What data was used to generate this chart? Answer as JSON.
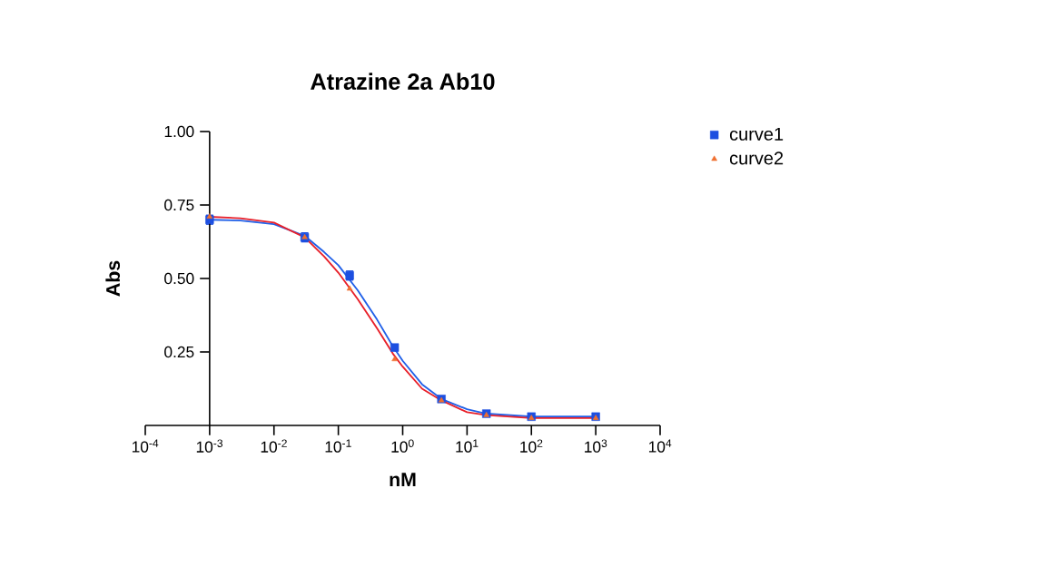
{
  "chart_data": {
    "type": "scatter",
    "title": "Atrazine 2a Ab10",
    "xlabel": "nM",
    "ylabel": "Abs",
    "log": "x",
    "legend": "top right",
    "xlim": [
      0.0001,
      10000
    ],
    "ylim": [
      0,
      1
    ],
    "xticks": [
      {
        "value": 0.0001,
        "label": "10$^{-4}$"
      },
      {
        "value": 0.001,
        "label": "10$^{-3}$"
      },
      {
        "value": 0.01,
        "label": "10$^{-2}$"
      },
      {
        "value": 0.1,
        "label": "10$^{-1}$"
      },
      {
        "value": 1,
        "label": "10$^{0}$"
      },
      {
        "value": 10,
        "label": "10$^{1}$"
      },
      {
        "value": 100,
        "label": "10$^{2}$"
      },
      {
        "value": 1000,
        "label": "10$^{3}$"
      },
      {
        "value": 10000,
        "label": "10$^{4}$"
      }
    ],
    "yticks": [
      0.25,
      {
        "value": 0.5,
        "label": "0.50"
      },
      0.75,
      {
        "value": 1,
        "label": "1.00"
      }
    ],
    "series": [
      {
        "name": "curve1",
        "marker": "square",
        "color": "#1d4fe0",
        "x": [
          0.001,
          0.03,
          0.15,
          0.75,
          4,
          20,
          100,
          1000
        ],
        "values": [
          0.7,
          0.64,
          0.51,
          0.265,
          0.09,
          0.04,
          0.03,
          0.03
        ],
        "errors": [
          0.015,
          0.015,
          0.015,
          0.01,
          null,
          null,
          null,
          null
        ]
      },
      {
        "name": "curve2",
        "marker": "triangle",
        "color": "#f07030",
        "x": [
          0.001,
          0.03,
          0.15,
          0.75,
          4,
          20,
          100,
          1000
        ],
        "values": [
          0.71,
          0.64,
          0.465,
          0.225,
          0.085,
          0.035,
          0.025,
          0.025
        ]
      },
      {
        "type": "line",
        "marker": "none",
        "color": "#2060e8",
        "x": [
          0.001,
          0.003,
          0.01,
          0.03,
          0.06,
          0.1,
          0.2,
          0.4,
          0.7,
          1,
          2,
          4,
          10,
          20,
          100,
          1000
        ],
        "values": [
          0.7,
          0.697,
          0.685,
          0.645,
          0.59,
          0.545,
          0.46,
          0.36,
          0.27,
          0.22,
          0.14,
          0.09,
          0.055,
          0.04,
          0.03,
          0.03
        ]
      },
      {
        "type": "line",
        "marker": "none",
        "color": "#e8202a",
        "x": [
          0.001,
          0.003,
          0.01,
          0.03,
          0.06,
          0.1,
          0.2,
          0.4,
          0.7,
          1,
          2,
          4,
          10,
          20,
          100,
          1000
        ],
        "values": [
          0.71,
          0.705,
          0.69,
          0.64,
          0.575,
          0.52,
          0.43,
          0.33,
          0.245,
          0.2,
          0.125,
          0.085,
          0.045,
          0.035,
          0.025,
          0.025
        ]
      }
    ]
  }
}
